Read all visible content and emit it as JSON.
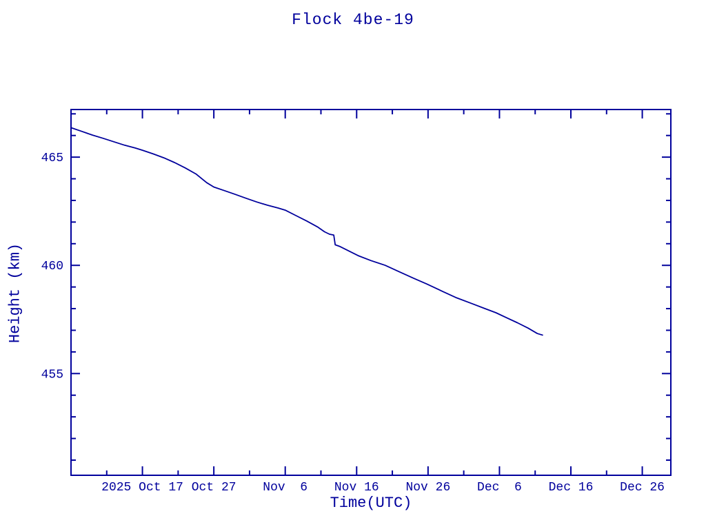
{
  "colors": {
    "plot_blue": "#00009c",
    "background": "#ffffff"
  },
  "chart_data": {
    "type": "line",
    "title": "Flock 4be-19",
    "xlabel": "Time(UTC)",
    "ylabel": "Height (km)",
    "x_unit": "days since 2025 Oct 7 (UTC)",
    "xlim": [
      0,
      84
    ],
    "ylim": [
      450.3,
      467.2
    ],
    "grid": false,
    "legend": "none",
    "x_major_ticks": [
      {
        "pos": 10,
        "label": "2025 Oct 17"
      },
      {
        "pos": 20,
        "label": "Oct 27"
      },
      {
        "pos": 30,
        "label": "Nov  6"
      },
      {
        "pos": 40,
        "label": "Nov 16"
      },
      {
        "pos": 50,
        "label": "Nov 26"
      },
      {
        "pos": 60,
        "label": "Dec  6"
      },
      {
        "pos": 70,
        "label": "Dec 16"
      },
      {
        "pos": 80,
        "label": "Dec 26"
      }
    ],
    "x_minor_ticks": [
      5,
      15,
      25,
      35,
      45,
      55,
      65,
      75
    ],
    "y_major_ticks": [
      {
        "pos": 455,
        "label": "455"
      },
      {
        "pos": 460,
        "label": "460"
      },
      {
        "pos": 465,
        "label": "465"
      }
    ],
    "y_minor_ticks": [
      451,
      452,
      453,
      454,
      456,
      457,
      458,
      459,
      461,
      462,
      463,
      464,
      466,
      467
    ],
    "series": [
      {
        "name": "height",
        "color": "#00009c",
        "x": [
          0,
          1.5,
          3,
          4.5,
          6,
          7.5,
          9,
          10,
          11.5,
          13,
          14.5,
          16,
          17.5,
          19,
          20,
          21.5,
          23,
          24.5,
          26,
          27.5,
          29,
          30,
          31.5,
          33,
          34.5,
          35.5,
          36.2,
          36.8,
          37.0,
          37.6,
          39,
          40.2,
          42,
          44,
          46,
          48,
          49.8,
          52,
          54,
          56,
          58,
          59.5,
          61,
          62.5,
          64,
          65.3,
          66.1
        ],
        "y": [
          466.36,
          466.19,
          466.02,
          465.87,
          465.71,
          465.55,
          465.42,
          465.32,
          465.15,
          464.97,
          464.75,
          464.5,
          464.22,
          463.82,
          463.62,
          463.45,
          463.28,
          463.1,
          462.93,
          462.78,
          462.65,
          462.55,
          462.3,
          462.05,
          461.78,
          461.55,
          461.44,
          461.4,
          460.95,
          460.88,
          460.65,
          460.45,
          460.22,
          460.0,
          459.7,
          459.4,
          459.14,
          458.8,
          458.5,
          458.25,
          458.0,
          457.81,
          457.58,
          457.35,
          457.1,
          456.85,
          456.77
        ]
      }
    ]
  }
}
